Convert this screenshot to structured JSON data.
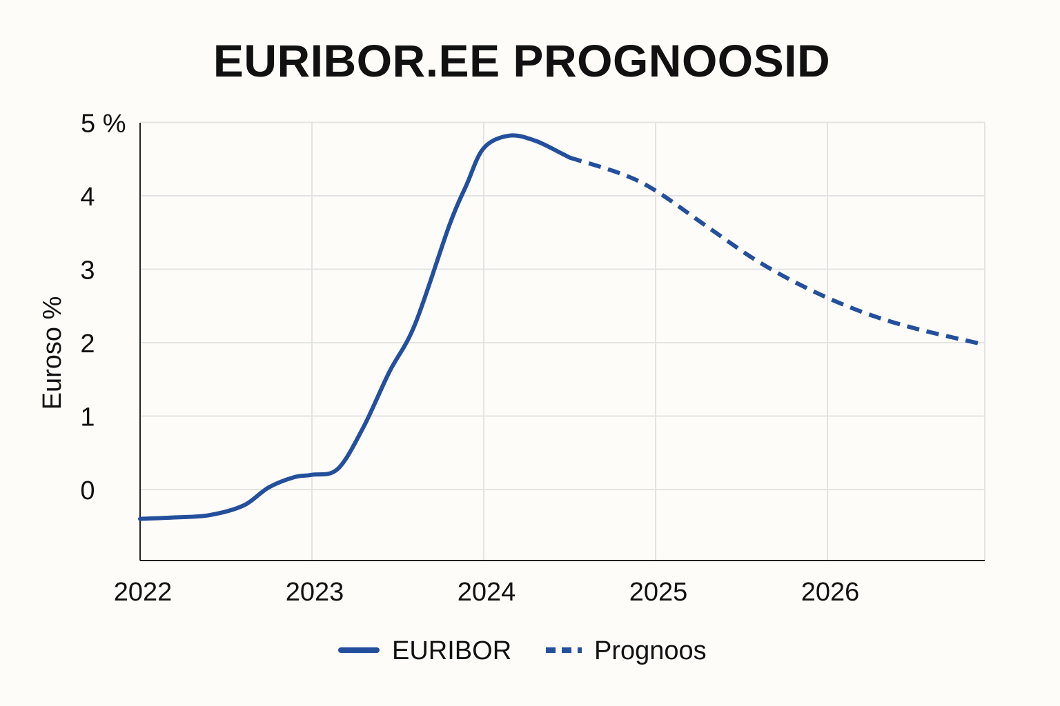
{
  "chart_data": {
    "type": "line",
    "title": "EURIBOR.EE PROGNOOSID",
    "xlabel": "",
    "ylabel": "Euroso %",
    "xlim": [
      2022.0,
      2026.9
    ],
    "ylim": [
      -1.0,
      5.0
    ],
    "x_ticks": [
      {
        "value": 2022,
        "label": "2022"
      },
      {
        "value": 2023,
        "label": "2023"
      },
      {
        "value": 2024,
        "label": "2024"
      },
      {
        "value": 2025,
        "label": "2025"
      },
      {
        "value": 2026,
        "label": "2026"
      }
    ],
    "y_ticks": [
      {
        "value": 0,
        "label": "0"
      },
      {
        "value": 1,
        "label": "1"
      },
      {
        "value": 2,
        "label": "2"
      },
      {
        "value": 3,
        "label": "3"
      },
      {
        "value": 4,
        "label": "4"
      },
      {
        "value": 5,
        "label": "5 %"
      }
    ],
    "grid": true,
    "legend_position": "bottom-center",
    "series": [
      {
        "name": "EURIBOR",
        "style": "solid",
        "color": "#234f9c",
        "points": [
          [
            2022.0,
            -0.4
          ],
          [
            2022.2,
            -0.38
          ],
          [
            2022.4,
            -0.35
          ],
          [
            2022.6,
            -0.22
          ],
          [
            2022.75,
            0.03
          ],
          [
            2022.9,
            0.17
          ],
          [
            2023.0,
            0.2
          ],
          [
            2023.15,
            0.28
          ],
          [
            2023.3,
            0.85
          ],
          [
            2023.45,
            1.6
          ],
          [
            2023.6,
            2.25
          ],
          [
            2023.8,
            3.6
          ],
          [
            2023.9,
            4.15
          ],
          [
            2024.0,
            4.65
          ],
          [
            2024.15,
            4.82
          ],
          [
            2024.3,
            4.75
          ],
          [
            2024.45,
            4.58
          ],
          [
            2024.5,
            4.52
          ]
        ]
      },
      {
        "name": "Prognoos",
        "style": "dashed",
        "color": "#234f9c",
        "points": [
          [
            2024.5,
            4.52
          ],
          [
            2024.8,
            4.3
          ],
          [
            2025.0,
            4.07
          ],
          [
            2025.3,
            3.58
          ],
          [
            2025.6,
            3.1
          ],
          [
            2025.9,
            2.72
          ],
          [
            2026.2,
            2.42
          ],
          [
            2026.5,
            2.2
          ],
          [
            2026.9,
            1.98
          ]
        ]
      }
    ]
  }
}
